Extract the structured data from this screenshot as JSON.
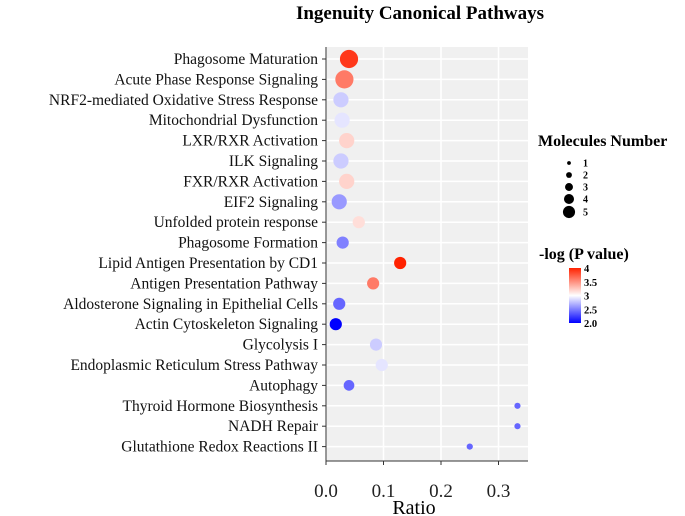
{
  "chart_data": {
    "type": "scatter",
    "title": "Ingenuity Canonical Pathways",
    "xlabel": "Ratio",
    "ylabel": "",
    "xlim": [
      0,
      0.35
    ],
    "xticks": [
      "0.0",
      "0.1",
      "0.2",
      "0.3"
    ],
    "xtick_values": [
      0,
      0.1,
      0.2,
      0.3
    ],
    "grid": true,
    "categories": [
      "Phagosome Maturation",
      "Acute Phase Response Signaling",
      "NRF2-mediated Oxidative Stress Response",
      "Mitochondrial Dysfunction",
      "LXR/RXR Activation",
      "ILK Signaling",
      "FXR/RXR Activation",
      "EIF2 Signaling",
      "Unfolded protein response",
      "Phagosome Formation",
      "Lipid Antigen Presentation by CD1",
      "Antigen Presentation Pathway",
      "Aldosterone Signaling in Epithelial Cells",
      "Actin Cytoskeleton Signaling",
      "Glycolysis I",
      "Endoplasmic Reticulum Stress Pathway",
      "Autophagy",
      "Thyroid Hormone Biosynthesis",
      "NADH Repair",
      "Glutathione Redox Reactions II"
    ],
    "ratio": [
      0.04,
      0.032,
      0.026,
      0.028,
      0.036,
      0.026,
      0.036,
      0.023,
      0.057,
      0.029,
      0.129,
      0.082,
      0.023,
      0.017,
      0.087,
      0.097,
      0.04,
      0.333,
      0.333,
      0.25
    ],
    "molecules": [
      5,
      5,
      4,
      4,
      4,
      4,
      4,
      4,
      3,
      3,
      3,
      3,
      3,
      3,
      3,
      3,
      2.5,
      1,
      1,
      1
    ],
    "neg_log_p": [
      3.9,
      3.6,
      2.8,
      2.9,
      3.2,
      2.8,
      3.2,
      2.6,
      3.15,
      2.5,
      4.0,
      3.6,
      2.4,
      2.0,
      2.8,
      2.9,
      2.4,
      2.4,
      2.4,
      2.4
    ],
    "size_legend": {
      "title": "Molecules Number",
      "values": [
        1,
        2,
        3,
        4,
        5
      ],
      "labels": [
        "1",
        "2",
        "3",
        "4",
        "5"
      ],
      "placement": "right"
    },
    "color_legend": {
      "title": "-log (P value)",
      "labels": [
        "4",
        "3.5",
        "3",
        "2.5",
        "2.0"
      ],
      "values": [
        4,
        3.5,
        3,
        2.5,
        2.0
      ],
      "low_color": "#0000ff",
      "mid_color": "#ffffff",
      "high_color": "#ff2200",
      "range": [
        2.0,
        4.0
      ],
      "placement": "right"
    }
  }
}
